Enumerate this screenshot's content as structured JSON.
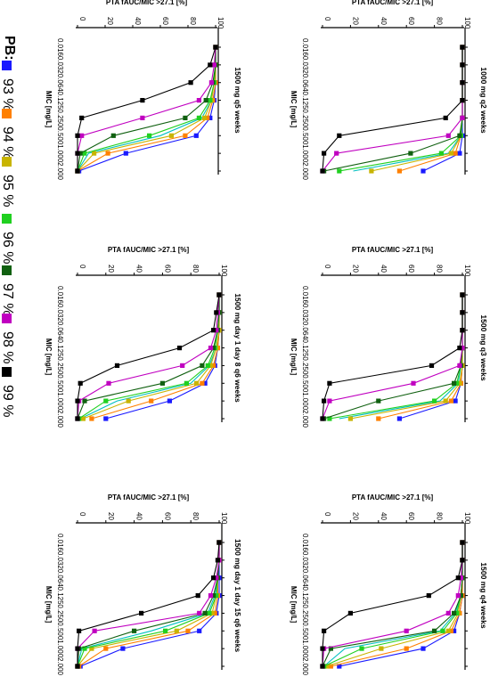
{
  "legend": {
    "title": "PB:",
    "items": [
      {
        "label": "93 %",
        "color": "#1a1aff"
      },
      {
        "label": "94 %",
        "color": "#ff8000"
      },
      {
        "label": "95 %",
        "color": "#c8b400"
      },
      {
        "label": "96 %",
        "color": "#20d020"
      },
      {
        "label": "97 %",
        "color": "#106010"
      },
      {
        "label": "98 %",
        "color": "#c000c0"
      },
      {
        "label": "99 %",
        "color": "#000000"
      }
    ],
    "extra_line_color": "#00c0c0"
  },
  "chart_data": [
    {
      "type": "line",
      "title": "1000 mg q2 weeks",
      "xlabel": "PTA fAUC/MIC >27.1 [%]",
      "ylabel": "MIC [mg/L]",
      "x_ticks": [
        "0",
        "20",
        "40",
        "60",
        "80",
        "100"
      ],
      "xlim": [
        0,
        100
      ],
      "mic_ticks": [
        "0.016",
        "0.032",
        "0.064",
        "0.125",
        "0.250",
        "0.500",
        "1.000",
        "2.000"
      ],
      "series": [
        {
          "name": "93 %",
          "values": [
            100,
            100,
            100,
            100,
            100,
            100,
            98,
            72
          ]
        },
        {
          "name": "94 %",
          "values": [
            100,
            100,
            100,
            100,
            100,
            99,
            95,
            55
          ]
        },
        {
          "name": "95 %",
          "values": [
            100,
            100,
            100,
            100,
            100,
            99,
            92,
            35
          ]
        },
        {
          "name": "96 %",
          "values": [
            100,
            100,
            100,
            100,
            100,
            99,
            85,
            12
          ]
        },
        {
          "name": "97 %",
          "values": [
            100,
            100,
            100,
            100,
            100,
            98,
            63,
            1
          ]
        },
        {
          "name": "98 %",
          "values": [
            100,
            100,
            100,
            100,
            100,
            90,
            10,
            0
          ]
        },
        {
          "name": "99 %",
          "values": [
            100,
            100,
            100,
            100,
            88,
            12,
            1,
            0
          ]
        },
        {
          "name": "",
          "values": [
            100,
            100,
            100,
            100,
            100,
            99,
            90,
            22
          ]
        }
      ]
    },
    {
      "type": "line",
      "title": "1500 mg q5 weeks",
      "xlabel": "PTA fAUC/MIC >27.1 [%]",
      "ylabel": "MIC [mg/L]",
      "x_ticks": [
        "0",
        "20",
        "40",
        "60",
        "80",
        "100"
      ],
      "xlim": [
        0,
        100
      ],
      "mic_ticks": [
        "0.016",
        "0.032",
        "0.064",
        "0.125",
        "0.250",
        "0.500",
        "1.000",
        "2.000"
      ],
      "series": [
        {
          "name": "93 %",
          "values": [
            100,
            100,
            100,
            99,
            96,
            86,
            35,
            1
          ]
        },
        {
          "name": "94 %",
          "values": [
            100,
            100,
            100,
            98,
            94,
            78,
            22,
            0
          ]
        },
        {
          "name": "95 %",
          "values": [
            100,
            100,
            99,
            97,
            92,
            68,
            12,
            0
          ]
        },
        {
          "name": "96 %",
          "values": [
            100,
            100,
            99,
            96,
            88,
            52,
            5,
            0
          ]
        },
        {
          "name": "97 %",
          "values": [
            100,
            100,
            98,
            93,
            78,
            26,
            2,
            0
          ]
        },
        {
          "name": "98 %",
          "values": [
            100,
            99,
            97,
            88,
            47,
            3,
            0,
            0
          ]
        },
        {
          "name": "99 %",
          "values": [
            100,
            96,
            82,
            47,
            3,
            0,
            0,
            0
          ]
        },
        {
          "name": "",
          "values": [
            100,
            100,
            99,
            97,
            90,
            60,
            8,
            0
          ]
        }
      ]
    },
    {
      "type": "line",
      "title": "1500 mg q3 weeks",
      "xlabel": "PTA fAUC/MIC >27.1 [%]",
      "ylabel": "MIC [mg/L]",
      "x_ticks": [
        "0",
        "20",
        "40",
        "60",
        "80",
        "100"
      ],
      "xlim": [
        0,
        100
      ],
      "mic_ticks": [
        "0.016",
        "0.032",
        "0.064",
        "0.125",
        "0.250",
        "0.500",
        "1.000",
        "2.000"
      ],
      "series": [
        {
          "name": "93 %",
          "values": [
            100,
            100,
            100,
            100,
            100,
            99,
            95,
            55
          ]
        },
        {
          "name": "94 %",
          "values": [
            100,
            100,
            100,
            100,
            100,
            99,
            92,
            40
          ]
        },
        {
          "name": "95 %",
          "values": [
            100,
            100,
            100,
            100,
            100,
            98,
            88,
            20
          ]
        },
        {
          "name": "96 %",
          "values": [
            100,
            100,
            100,
            100,
            99,
            96,
            80,
            5
          ]
        },
        {
          "name": "97 %",
          "values": [
            100,
            100,
            100,
            100,
            99,
            94,
            40,
            1
          ]
        },
        {
          "name": "98 %",
          "values": [
            100,
            100,
            100,
            100,
            98,
            65,
            5,
            0
          ]
        },
        {
          "name": "99 %",
          "values": [
            100,
            100,
            100,
            98,
            78,
            5,
            1,
            0
          ]
        },
        {
          "name": "",
          "values": [
            100,
            100,
            100,
            100,
            99,
            97,
            84,
            12
          ]
        }
      ]
    },
    {
      "type": "line",
      "title": "1500 mg day 1 day 8 q6 weeks",
      "xlabel": "PTA fAUC/MIC >27.1 [%]",
      "ylabel": "MIC [mg/L]",
      "x_ticks": [
        "0",
        "20",
        "40",
        "60",
        "80",
        "100"
      ],
      "xlim": [
        0,
        100
      ],
      "mic_ticks": [
        "0.016",
        "0.032",
        "0.064",
        "0.125",
        "0.250",
        "0.500",
        "1.000",
        "2.000"
      ],
      "series": [
        {
          "name": "93 %",
          "values": [
            100,
            100,
            100,
            99,
            97,
            90,
            65,
            20
          ]
        },
        {
          "name": "94 %",
          "values": [
            100,
            100,
            100,
            99,
            96,
            88,
            52,
            10
          ]
        },
        {
          "name": "95 %",
          "values": [
            100,
            100,
            100,
            98,
            94,
            84,
            36,
            4
          ]
        },
        {
          "name": "96 %",
          "values": [
            100,
            100,
            99,
            97,
            92,
            77,
            20,
            1
          ]
        },
        {
          "name": "97 %",
          "values": [
            100,
            100,
            99,
            96,
            88,
            60,
            5,
            0
          ]
        },
        {
          "name": "98 %",
          "values": [
            100,
            99,
            98,
            94,
            74,
            22,
            1,
            0
          ]
        },
        {
          "name": "99 %",
          "values": [
            100,
            98,
            96,
            72,
            28,
            2,
            0,
            0
          ]
        },
        {
          "name": "",
          "values": [
            100,
            100,
            100,
            98,
            93,
            80,
            28,
            2
          ]
        }
      ]
    },
    {
      "type": "line",
      "title": "1500 mg q4 weeks",
      "xlabel": "PTA fAUC/MIC >27.1 [%]",
      "ylabel": "MIC [mg/L]",
      "x_ticks": [
        "0",
        "20",
        "40",
        "60",
        "80",
        "100"
      ],
      "xlim": [
        0,
        100
      ],
      "mic_ticks": [
        "0.016",
        "0.032",
        "0.064",
        "0.125",
        "0.250",
        "0.500",
        "1.000",
        "2.000"
      ],
      "series": [
        {
          "name": "93 %",
          "values": [
            100,
            100,
            100,
            100,
            98,
            94,
            72,
            12
          ]
        },
        {
          "name": "94 %",
          "values": [
            100,
            100,
            100,
            100,
            98,
            92,
            60,
            6
          ]
        },
        {
          "name": "95 %",
          "values": [
            100,
            100,
            100,
            99,
            97,
            90,
            42,
            3
          ]
        },
        {
          "name": "96 %",
          "values": [
            100,
            100,
            100,
            99,
            96,
            86,
            28,
            1
          ]
        },
        {
          "name": "97 %",
          "values": [
            100,
            100,
            100,
            99,
            94,
            80,
            6,
            0
          ]
        },
        {
          "name": "98 %",
          "values": [
            100,
            100,
            99,
            97,
            90,
            60,
            1,
            0
          ]
        },
        {
          "name": "99 %",
          "values": [
            100,
            100,
            97,
            76,
            20,
            1,
            0,
            0
          ]
        },
        {
          "name": "",
          "values": [
            100,
            100,
            100,
            99,
            95,
            84,
            16,
            1
          ]
        }
      ]
    },
    {
      "type": "line",
      "title": "1500 mg day 1 day 15 q6 weeks",
      "xlabel": "PTA fAUC/MIC >27.1 [%]",
      "ylabel": "MIC [mg/L]",
      "x_ticks": [
        "0",
        "20",
        "40",
        "60",
        "80",
        "100"
      ],
      "xlim": [
        0,
        100
      ],
      "mic_ticks": [
        "0.016",
        "0.032",
        "0.064",
        "0.125",
        "0.250",
        "0.500",
        "1.000",
        "2.000"
      ],
      "series": [
        {
          "name": "93 %",
          "values": [
            100,
            100,
            100,
            100,
            98,
            86,
            32,
            2
          ]
        },
        {
          "name": "94 %",
          "values": [
            100,
            100,
            99,
            99,
            97,
            78,
            20,
            1
          ]
        },
        {
          "name": "95 %",
          "values": [
            100,
            100,
            99,
            98,
            95,
            70,
            10,
            0
          ]
        },
        {
          "name": "96 %",
          "values": [
            100,
            100,
            99,
            98,
            93,
            62,
            5,
            0
          ]
        },
        {
          "name": "97 %",
          "values": [
            100,
            100,
            99,
            96,
            90,
            40,
            1,
            0
          ]
        },
        {
          "name": "98 %",
          "values": [
            100,
            100,
            98,
            94,
            86,
            12,
            0,
            0
          ]
        },
        {
          "name": "99 %",
          "values": [
            100,
            99,
            96,
            85,
            45,
            1,
            0,
            0
          ]
        },
        {
          "name": "",
          "values": [
            100,
            100,
            99,
            97,
            92,
            52,
            3,
            0
          ]
        }
      ]
    }
  ]
}
